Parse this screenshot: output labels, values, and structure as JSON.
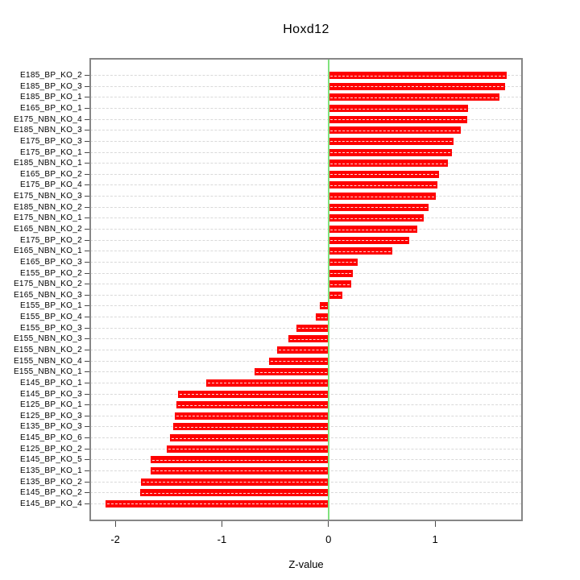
{
  "chart_data": {
    "type": "bar",
    "orientation": "horizontal",
    "title": "Hoxd12",
    "xlabel": "Z-value",
    "xlim": [
      -2.235,
      1.815
    ],
    "xticks": [
      "-2",
      "-1",
      "0",
      "1"
    ],
    "xtick_values": [
      -2,
      -1,
      0,
      1
    ],
    "grid": true,
    "categories": [
      "E185_BP_KO_2",
      "E185_BP_KO_3",
      "E185_BP_KO_1",
      "E165_BP_KO_1",
      "E175_NBN_KO_4",
      "E185_NBN_KO_3",
      "E175_BP_KO_3",
      "E175_BP_KO_1",
      "E185_NBN_KO_1",
      "E165_BP_KO_2",
      "E175_BP_KO_4",
      "E175_NBN_KO_3",
      "E185_NBN_KO_2",
      "E175_NBN_KO_1",
      "E165_NBN_KO_2",
      "E175_BP_KO_2",
      "E165_NBN_KO_1",
      "E165_BP_KO_3",
      "E155_BP_KO_2",
      "E175_NBN_KO_2",
      "E165_NBN_KO_3",
      "E155_BP_KO_1",
      "E155_BP_KO_4",
      "E155_BP_KO_3",
      "E155_NBN_KO_3",
      "E155_NBN_KO_2",
      "E155_NBN_KO_4",
      "E155_NBN_KO_1",
      "E145_BP_KO_1",
      "E145_BP_KO_3",
      "E125_BP_KO_1",
      "E125_BP_KO_3",
      "E135_BP_KO_3",
      "E145_BP_KO_6",
      "E125_BP_KO_2",
      "E145_BP_KO_5",
      "E135_BP_KO_1",
      "E135_BP_KO_2",
      "E145_BP_KO_2",
      "E145_BP_KO_4"
    ],
    "values": [
      1.67,
      1.66,
      1.6,
      1.31,
      1.3,
      1.24,
      1.17,
      1.16,
      1.12,
      1.04,
      1.02,
      1.01,
      0.94,
      0.89,
      0.83,
      0.76,
      0.6,
      0.27,
      0.23,
      0.21,
      0.13,
      -0.08,
      -0.12,
      -0.3,
      -0.38,
      -0.48,
      -0.56,
      -0.69,
      -1.15,
      -1.41,
      -1.43,
      -1.44,
      -1.46,
      -1.49,
      -1.52,
      -1.67,
      -1.67,
      -1.76,
      -1.77,
      -2.09
    ],
    "colors": {
      "bar": "#fe0000",
      "bar_hatch": "#ffffff",
      "zero_line": "#80e27e",
      "grid": "#d9d9d9",
      "frame": "#868686",
      "text": "#000000"
    }
  }
}
